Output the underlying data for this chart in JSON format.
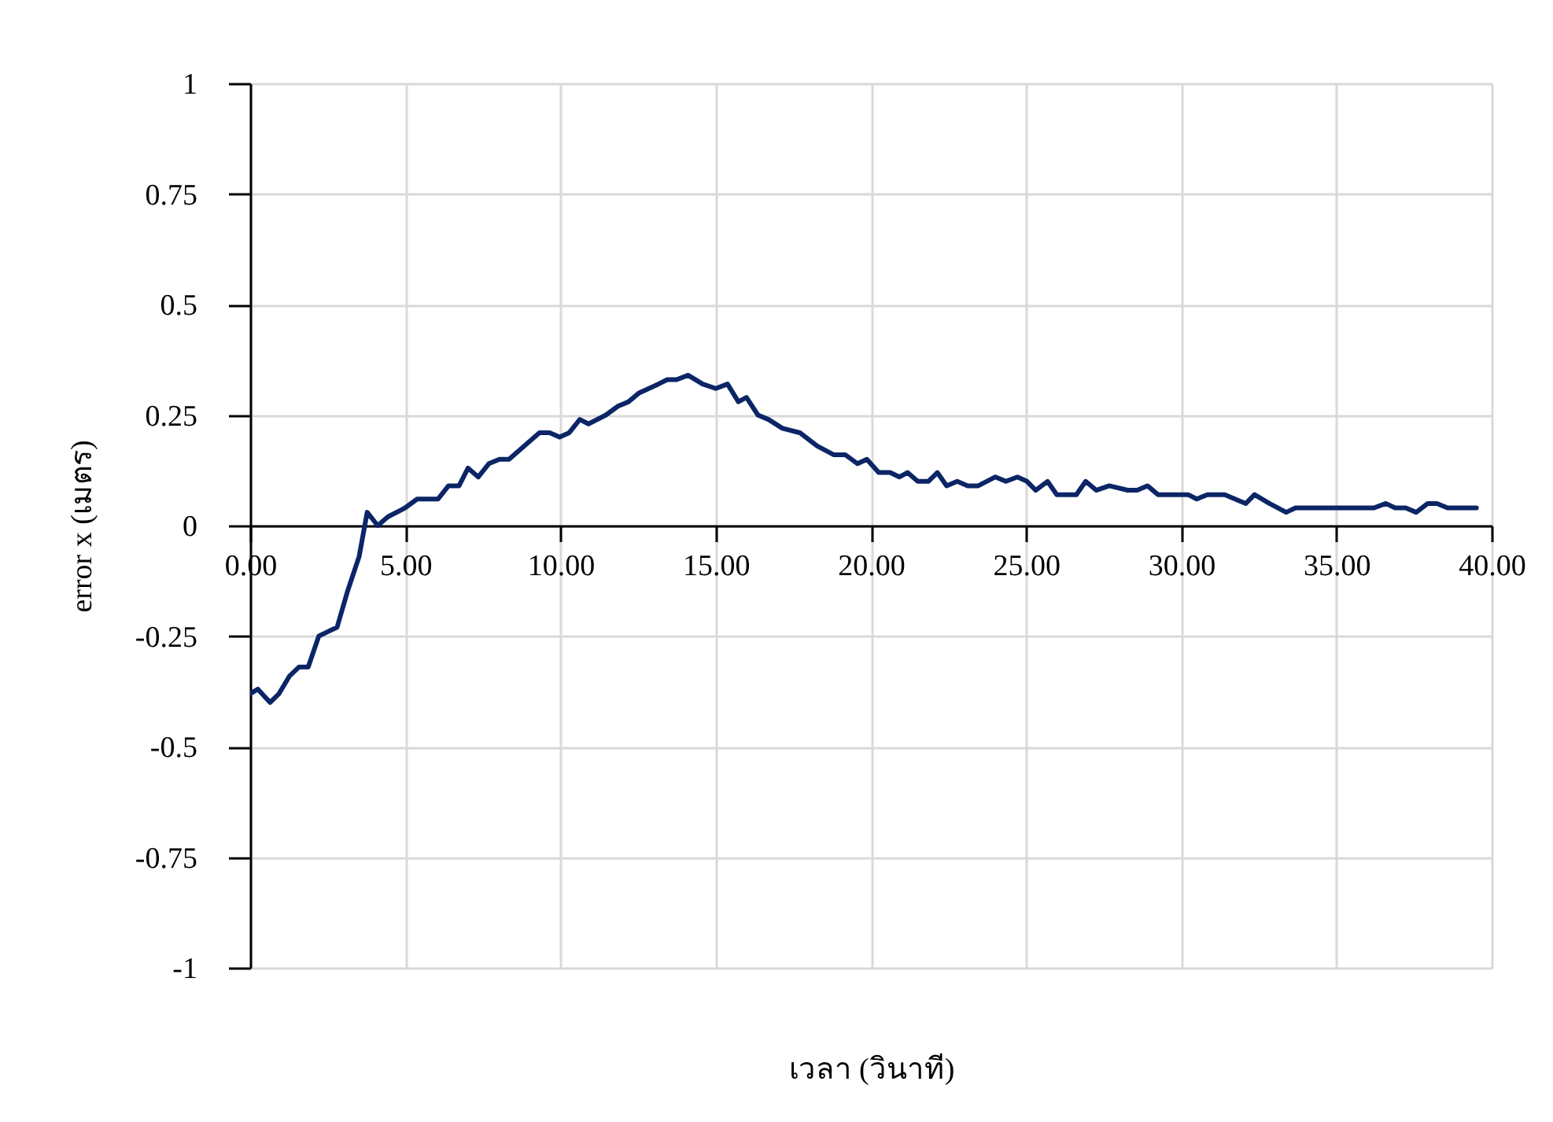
{
  "chart_data": {
    "type": "line",
    "xlabel": "เวลา (วินาที)",
    "ylabel": "error x (เมตร)",
    "xlim": [
      0,
      40
    ],
    "ylim": [
      -1,
      1
    ],
    "xticks": [
      {
        "value": 0,
        "label": "0.00"
      },
      {
        "value": 5,
        "label": "5.00"
      },
      {
        "value": 10,
        "label": "10.00"
      },
      {
        "value": 15,
        "label": "15.00"
      },
      {
        "value": 20,
        "label": "20.00"
      },
      {
        "value": 25,
        "label": "25.00"
      },
      {
        "value": 30,
        "label": "30.00"
      },
      {
        "value": 35,
        "label": "35.00"
      },
      {
        "value": 40,
        "label": "40.00"
      }
    ],
    "yticks": [
      -1,
      -0.75,
      -0.5,
      -0.25,
      0,
      0.25,
      0.5,
      0.75,
      1
    ],
    "grid": true,
    "marker": "none",
    "line_style": "solid",
    "series": [
      {
        "color": "#0b2566",
        "x": [
          0,
          0.25,
          0.64,
          0.93,
          1.27,
          1.57,
          1.87,
          2.21,
          2.5,
          2.8,
          3.13,
          3.51,
          3.77,
          4.11,
          4.44,
          4.99,
          5.38,
          6.05,
          6.39,
          6.73,
          7.02,
          7.35,
          7.69,
          8.03,
          8.34,
          9.32,
          9.65,
          9.97,
          10.28,
          10.62,
          10.9,
          11.46,
          11.85,
          12.19,
          12.53,
          13.15,
          13.44,
          13.74,
          14.11,
          14.58,
          15.0,
          15.38,
          15.73,
          15.99,
          16.36,
          16.7,
          17.15,
          17.71,
          18.27,
          18.81,
          19.18,
          19.57,
          19.87,
          20.25,
          20.62,
          20.92,
          21.18,
          21.51,
          21.85,
          22.14,
          22.44,
          22.78,
          23.12,
          23.46,
          24.01,
          24.35,
          24.72,
          25.03,
          25.31,
          25.69,
          25.99,
          26.62,
          26.92,
          27.26,
          27.68,
          28.27,
          28.58,
          28.91,
          29.25,
          30.22,
          30.5,
          30.84,
          31.4,
          32.08,
          32.36,
          32.84,
          33.38,
          33.68,
          36.21,
          36.59,
          36.89,
          37.23,
          37.57,
          37.94,
          38.24,
          38.58,
          39.51
        ],
        "values": [
          -0.38,
          -0.37,
          -0.4,
          -0.38,
          -0.34,
          -0.32,
          -0.32,
          -0.25,
          -0.24,
          -0.23,
          -0.15,
          -0.07,
          0.03,
          0.0,
          0.02,
          0.04,
          0.06,
          0.06,
          0.09,
          0.09,
          0.13,
          0.11,
          0.14,
          0.15,
          0.15,
          0.21,
          0.21,
          0.2,
          0.21,
          0.24,
          0.23,
          0.25,
          0.27,
          0.28,
          0.3,
          0.32,
          0.33,
          0.33,
          0.34,
          0.32,
          0.31,
          0.32,
          0.28,
          0.29,
          0.25,
          0.24,
          0.22,
          0.21,
          0.18,
          0.16,
          0.16,
          0.14,
          0.15,
          0.12,
          0.12,
          0.11,
          0.12,
          0.1,
          0.1,
          0.12,
          0.09,
          0.1,
          0.09,
          0.09,
          0.11,
          0.1,
          0.11,
          0.1,
          0.08,
          0.1,
          0.07,
          0.07,
          0.1,
          0.08,
          0.09,
          0.08,
          0.08,
          0.09,
          0.07,
          0.07,
          0.06,
          0.07,
          0.07,
          0.05,
          0.07,
          0.05,
          0.03,
          0.04,
          0.04,
          0.05,
          0.04,
          0.04,
          0.03,
          0.05,
          0.05,
          0.04,
          0.04
        ]
      }
    ]
  }
}
